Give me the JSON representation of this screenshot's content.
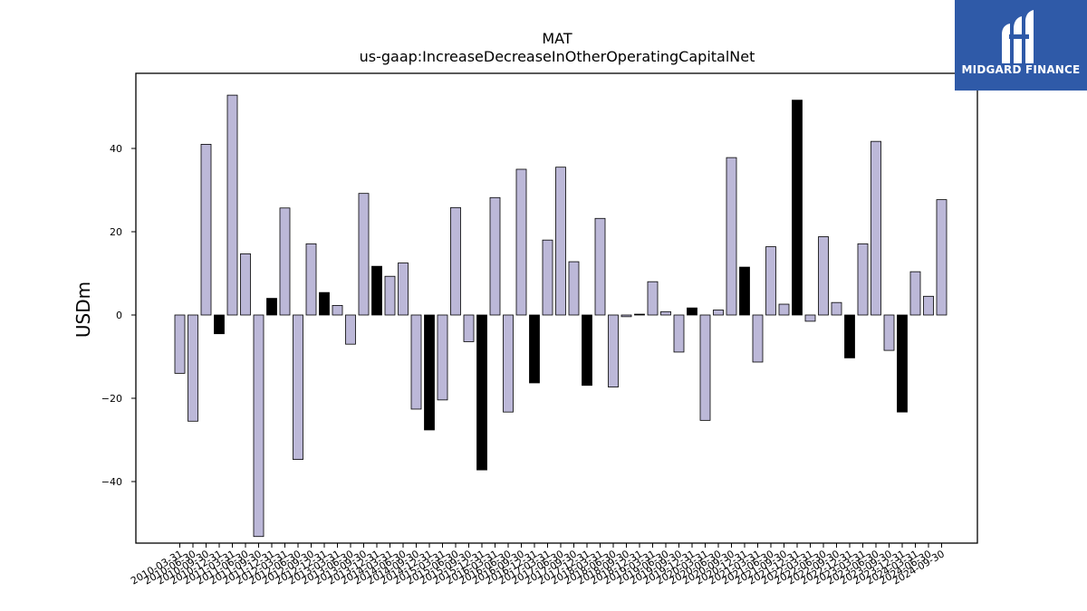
{
  "chart_data": {
    "type": "bar",
    "title": "MAT",
    "subtitle": "us-gaap:IncreaseDecreaseInOtherOperatingCapitalNet",
    "xlabel": "",
    "ylabel": "USDm",
    "ylim": [
      -55,
      58
    ],
    "yticks": [
      -40,
      -20,
      0,
      20,
      40
    ],
    "grid": false,
    "colors": {
      "quarter": "#bcb8d8",
      "q4": "#000000",
      "edge": "#000000"
    },
    "categories": [
      "2010-03-31",
      "2010-06-30",
      "2010-09-30",
      "2010-12-31",
      "2011-03-31",
      "2011-06-30",
      "2011-09-30",
      "2011-12-31",
      "2012-03-31",
      "2012-06-30",
      "2012-09-30",
      "2012-12-31",
      "2013-03-31",
      "2013-06-30",
      "2013-09-30",
      "2013-12-31",
      "2014-03-31",
      "2014-06-30",
      "2014-09-30",
      "2014-12-31",
      "2015-03-31",
      "2015-06-30",
      "2015-09-30",
      "2015-12-31",
      "2016-03-31",
      "2016-06-30",
      "2016-09-30",
      "2016-12-31",
      "2017-03-31",
      "2017-06-30",
      "2017-09-30",
      "2017-12-31",
      "2018-03-31",
      "2018-06-30",
      "2018-09-30",
      "2018-12-31",
      "2019-03-31",
      "2019-06-30",
      "2019-09-30",
      "2019-12-31",
      "2020-03-31",
      "2020-06-30",
      "2020-09-30",
      "2020-12-31",
      "2021-03-31",
      "2021-06-30",
      "2021-09-30",
      "2021-12-31",
      "2022-03-31",
      "2022-06-30",
      "2022-09-30",
      "2022-12-31",
      "2023-03-31",
      "2023-06-30",
      "2023-09-30",
      "2023-12-31",
      "2024-03-31",
      "2024-06-30",
      "2024-09-30"
    ],
    "values": [
      -14,
      -25.5,
      41,
      -4.5,
      52.8,
      14.7,
      -53.2,
      4,
      25.7,
      -34.7,
      17.1,
      5.4,
      2.3,
      -7,
      29.2,
      11.7,
      9.3,
      12.5,
      -22.6,
      -27.6,
      -20.4,
      25.8,
      -6.4,
      -37.2,
      28.2,
      -23.3,
      35,
      -16.3,
      18,
      35.5,
      12.8,
      -16.9,
      23.2,
      -17.3,
      -0.4,
      0.2,
      8,
      0.8,
      -8.9,
      1.7,
      -25.3,
      1.2,
      37.8,
      11.5,
      -11.3,
      16.4,
      2.6,
      51.6,
      -1.5,
      18.8,
      3,
      -10.3,
      17.1,
      41.7,
      -8.5,
      -23.3,
      10.4,
      4.5,
      27.7
    ]
  },
  "logo": {
    "text": "MIDGARD FINANCE",
    "icon": "midgard-m-logo-icon"
  }
}
